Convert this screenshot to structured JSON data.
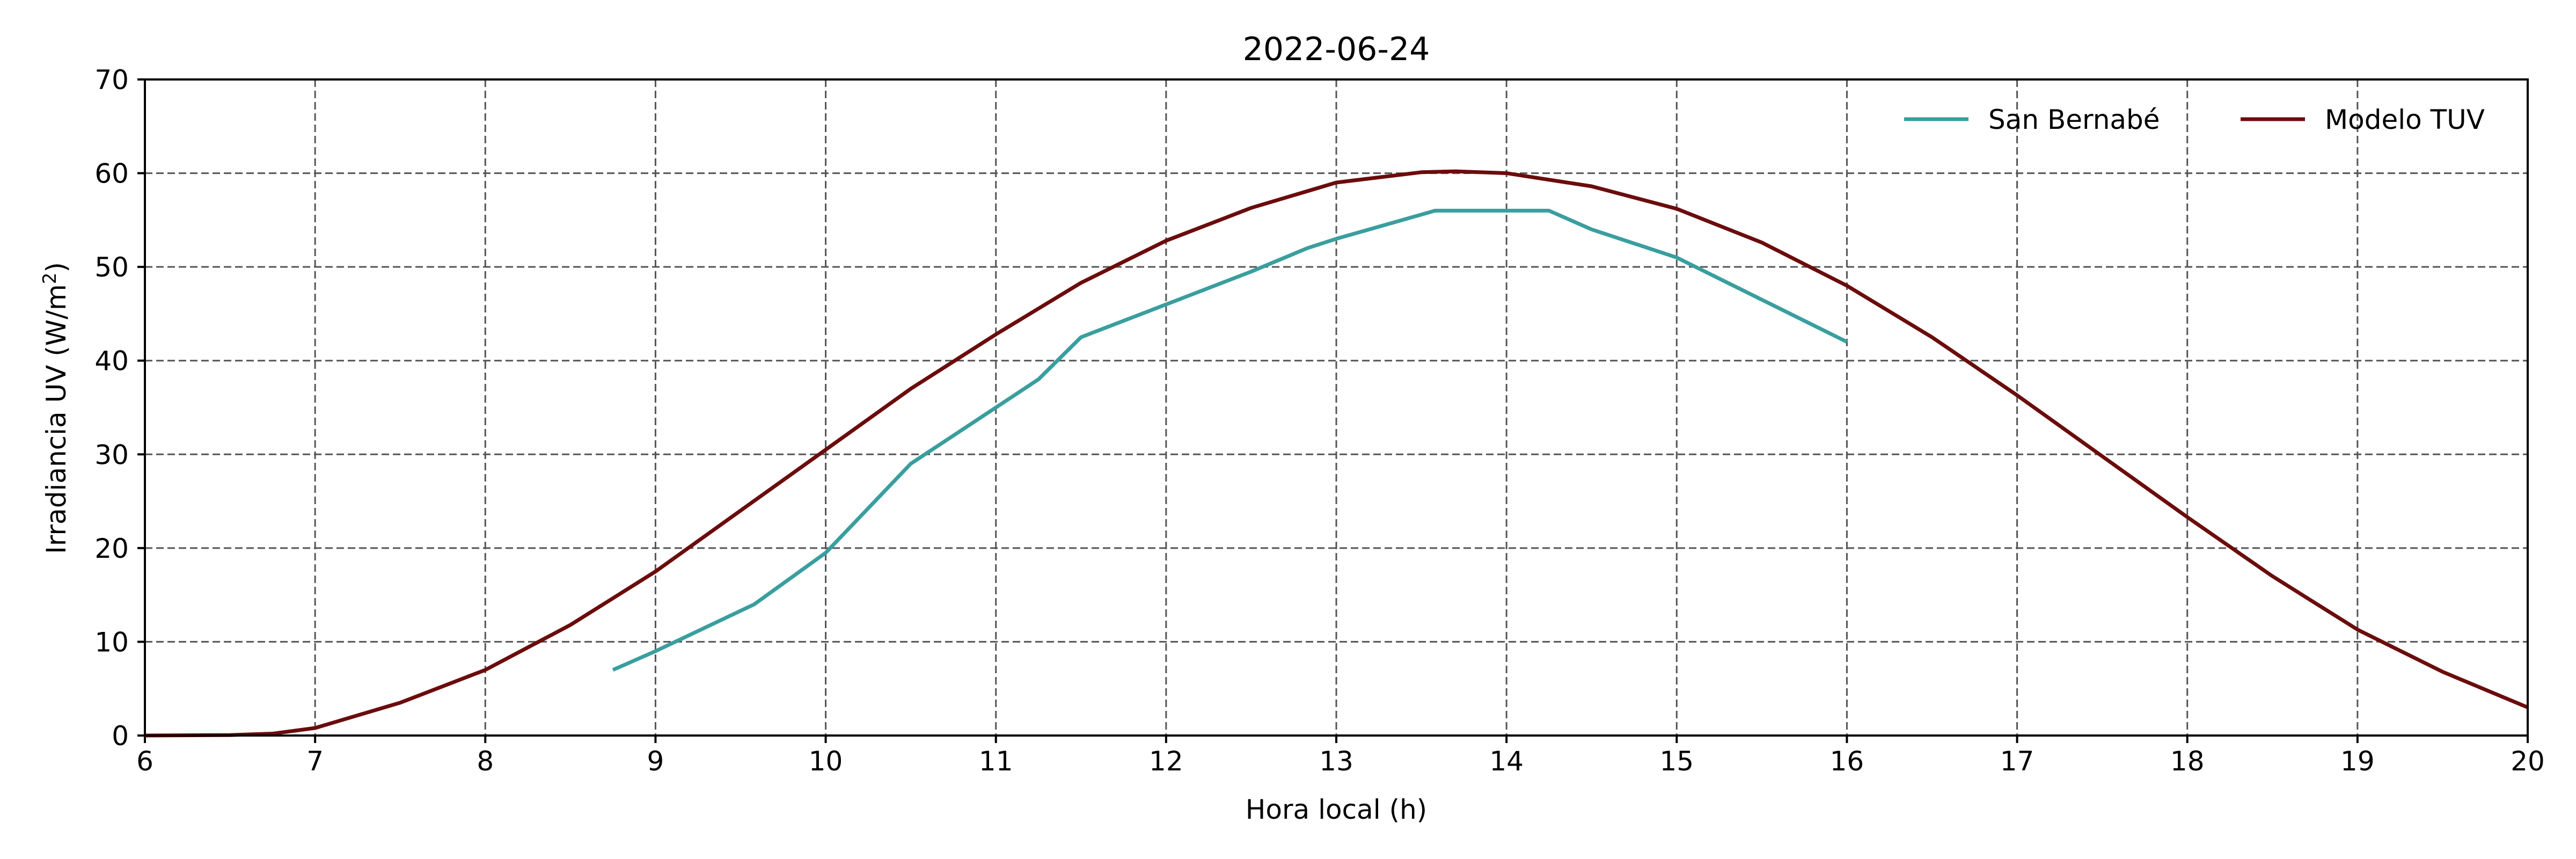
{
  "chart_data": {
    "type": "line",
    "title": "2022-06-24",
    "xlabel": "Hora local (h)",
    "ylabel": "Irradiancia UV (W/m",
    "ylabel_sup": "2",
    "ylabel_end": ")",
    "xlim": [
      6,
      20
    ],
    "ylim": [
      0,
      70
    ],
    "xticks": [
      6,
      7,
      8,
      9,
      10,
      11,
      12,
      13,
      14,
      15,
      16,
      17,
      18,
      19,
      20
    ],
    "yticks": [
      0,
      10,
      20,
      30,
      40,
      50,
      60,
      70
    ],
    "grid": true,
    "legend_position": "top-right",
    "series": [
      {
        "name": "San Bernabé",
        "color": "#3a9e9e",
        "x": [
          8.75,
          9.0,
          9.58,
          10.0,
          10.5,
          11.0,
          11.25,
          11.5,
          12.0,
          12.5,
          12.83,
          13.0,
          13.58,
          14.0,
          14.25,
          14.5,
          15.0,
          15.5,
          16.0
        ],
        "y": [
          7.0,
          9.0,
          14.0,
          19.5,
          29.0,
          35.0,
          38.0,
          42.5,
          46.0,
          49.5,
          52.0,
          53.0,
          56.0,
          56.0,
          56.0,
          54.0,
          51.0,
          46.5,
          42.0
        ]
      },
      {
        "name": "Modelo TUV",
        "color": "#6b0c0c",
        "x": [
          6.0,
          6.5,
          6.75,
          7.0,
          7.5,
          8.0,
          8.5,
          9.0,
          9.5,
          10.0,
          10.5,
          11.0,
          11.5,
          12.0,
          12.5,
          13.0,
          13.5,
          13.7,
          14.0,
          14.5,
          15.0,
          15.5,
          16.0,
          16.5,
          17.0,
          17.5,
          18.0,
          18.5,
          19.0,
          19.5,
          20.0
        ],
        "y": [
          0.0,
          0.05,
          0.2,
          0.8,
          3.5,
          7.0,
          11.8,
          17.5,
          24.0,
          30.5,
          37.0,
          42.8,
          48.3,
          52.8,
          56.3,
          59.0,
          60.1,
          60.2,
          60.0,
          58.6,
          56.2,
          52.6,
          48.0,
          42.5,
          36.3,
          29.8,
          23.3,
          17.0,
          11.3,
          6.8,
          3.0
        ]
      }
    ]
  }
}
